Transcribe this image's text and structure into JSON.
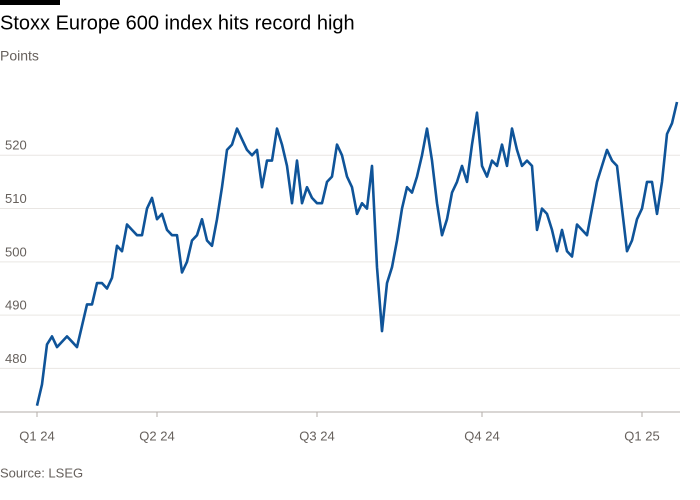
{
  "chart_data": {
    "type": "line",
    "title": "Stoxx Europe 600 index hits record high",
    "subtitle": "Points",
    "source": "Source: LSEG",
    "categories": [
      "Q1 24",
      null,
      null,
      null,
      null,
      null,
      null,
      null,
      null,
      null,
      null,
      null,
      null,
      null,
      null,
      null,
      null,
      null,
      null,
      null,
      null,
      null,
      null,
      null,
      "Q2 24",
      null,
      null,
      null,
      null,
      null,
      null,
      null,
      null,
      null,
      null,
      null,
      null,
      null,
      null,
      null,
      null,
      null,
      null,
      null,
      null,
      null,
      null,
      null,
      null,
      null,
      null,
      null,
      null,
      null,
      null,
      null,
      "Q3 24",
      null,
      null,
      null,
      null,
      null,
      null,
      null,
      null,
      null,
      null,
      null,
      null,
      null,
      null,
      null,
      null,
      null,
      null,
      null,
      null,
      null,
      null,
      null,
      null,
      null,
      null,
      null,
      null,
      null,
      null,
      null,
      null,
      "Q4 24",
      null,
      null,
      null,
      null,
      null,
      null,
      null,
      null,
      null,
      null,
      null,
      null,
      null,
      null,
      null,
      null,
      null,
      null,
      null,
      null,
      null,
      null,
      null,
      null,
      null,
      null,
      null,
      null,
      null,
      null,
      null,
      "Q1 25",
      null,
      null,
      null,
      null,
      null,
      null,
      null
    ],
    "series": [
      {
        "name": "Stoxx Europe 600",
        "color": "#0f5499",
        "values": [
          473,
          477,
          484.5,
          486,
          484,
          485,
          486,
          485,
          484,
          488,
          492,
          492,
          496,
          496,
          495,
          497,
          503,
          502,
          507,
          506,
          505,
          505,
          510,
          512,
          508,
          509,
          506,
          505,
          505,
          498,
          500,
          504,
          505,
          508,
          504,
          503,
          508,
          514,
          521,
          522,
          525,
          523,
          521,
          520,
          521,
          514,
          519,
          519,
          525,
          522,
          518,
          511,
          519,
          511,
          514,
          512,
          511,
          511,
          515,
          516,
          522,
          520,
          516,
          514,
          509,
          511,
          510,
          518,
          499,
          487,
          496,
          499,
          504,
          510,
          514,
          513,
          516,
          520,
          525,
          519,
          511,
          505,
          508,
          513,
          515,
          518,
          515,
          522,
          528,
          518,
          516,
          519,
          518,
          522,
          518,
          525,
          521,
          518,
          519,
          518,
          506,
          510,
          509,
          506,
          502,
          506,
          502,
          501,
          507,
          506,
          505,
          510,
          515,
          518,
          521,
          519,
          518,
          510,
          502,
          504,
          508,
          510,
          515,
          515,
          509,
          515,
          524,
          526,
          530
        ]
      }
    ],
    "ylim": [
      472,
      530
    ],
    "yticks": [
      480,
      490,
      500,
      510,
      520
    ],
    "grid": true
  }
}
